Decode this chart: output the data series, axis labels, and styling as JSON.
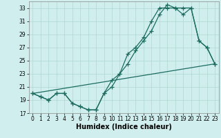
{
  "xlabel": "Humidex (Indice chaleur)",
  "bg_color": "#d0eeee",
  "grid_color": "#b0d8d0",
  "line_color": "#1a6b5e",
  "marker": "+",
  "markersize": 4,
  "linewidth": 0.9,
  "ylim": [
    17,
    34
  ],
  "xlim": [
    -0.5,
    23.5
  ],
  "yticks": [
    17,
    19,
    21,
    23,
    25,
    27,
    29,
    31,
    33
  ],
  "xticks": [
    0,
    1,
    2,
    3,
    4,
    5,
    6,
    7,
    8,
    9,
    10,
    11,
    12,
    13,
    14,
    15,
    16,
    17,
    18,
    19,
    20,
    21,
    22,
    23
  ],
  "line1_x": [
    0,
    1,
    2,
    3,
    4,
    5,
    6,
    7,
    8,
    9,
    10,
    11,
    12,
    13,
    14,
    15,
    16,
    17,
    18,
    19,
    20,
    21,
    22,
    23
  ],
  "line1_y": [
    20,
    19.5,
    19,
    20,
    20,
    18.5,
    18,
    17.5,
    17.5,
    20,
    22,
    23,
    26,
    27,
    28.5,
    31,
    33,
    33,
    33,
    33,
    33,
    28,
    27,
    24.5
  ],
  "line2_x": [
    0,
    1,
    2,
    3,
    4,
    5,
    6,
    7,
    8,
    9,
    10,
    11,
    12,
    13,
    14,
    15,
    16,
    17,
    18,
    19,
    20,
    21,
    22,
    23
  ],
  "line2_y": [
    20,
    19.5,
    19,
    20,
    20,
    18.5,
    18,
    17.5,
    17.5,
    20,
    21,
    23,
    24.5,
    26.5,
    28,
    29.5,
    32,
    33.5,
    33,
    32,
    33,
    28,
    27,
    24.5
  ],
  "line3_x": [
    0,
    23
  ],
  "line3_y": [
    20,
    24.5
  ],
  "tick_fontsize": 5.5,
  "label_fontsize": 7
}
